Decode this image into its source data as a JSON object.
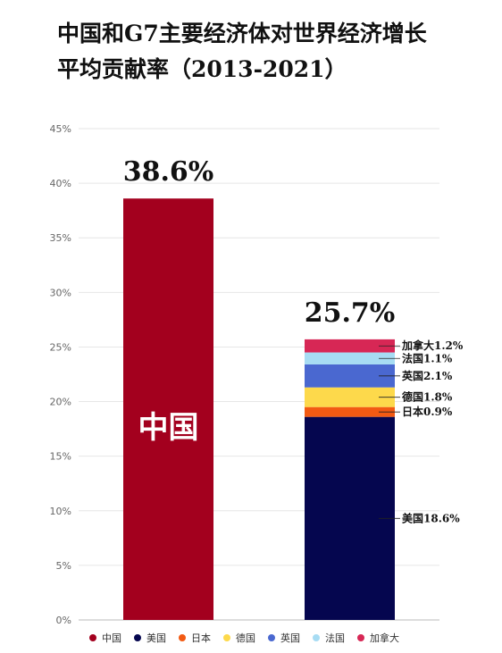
{
  "title_lines": [
    "中国和G7主要经济体对世界经济增长",
    "平均贡献率（2013-2021）"
  ],
  "chart_data": {
    "type": "bar",
    "title": "中国和G7主要经济体对世界经济增长平均贡献率（2013-2021）",
    "ylim": [
      0,
      45
    ],
    "yticks": [
      "0%",
      "5%",
      "10%",
      "15%",
      "20%",
      "25%",
      "30%",
      "35%",
      "40%",
      "45%"
    ],
    "grid": true,
    "legend_position": "bottom",
    "bars": [
      {
        "total_label": "38.6%",
        "inner_label": "中国",
        "segments": [
          {
            "name": "中国",
            "value": 38.6,
            "color": "#a3001e",
            "label": ""
          }
        ]
      },
      {
        "total_label": "25.7%",
        "inner_label": "",
        "segments": [
          {
            "name": "美国",
            "value": 18.6,
            "color": "#05064f",
            "label": "美国18.6%"
          },
          {
            "name": "日本",
            "value": 0.9,
            "color": "#f25a13",
            "label": "日本0.9%"
          },
          {
            "name": "德国",
            "value": 1.8,
            "color": "#fdd94b",
            "label": "德国1.8%"
          },
          {
            "name": "英国",
            "value": 2.1,
            "color": "#4a68d0",
            "label": "英国2.1%"
          },
          {
            "name": "法国",
            "value": 1.1,
            "color": "#a7dcf3",
            "label": "法国1.1%"
          },
          {
            "name": "加拿大",
            "value": 1.2,
            "color": "#d72755",
            "label": "加拿大1.2%"
          }
        ]
      }
    ],
    "legend": [
      {
        "name": "中国",
        "color": "#a3001e"
      },
      {
        "name": "美国",
        "color": "#05064f"
      },
      {
        "name": "日本",
        "color": "#f25a13"
      },
      {
        "name": "德国",
        "color": "#fdd94b"
      },
      {
        "name": "英国",
        "color": "#4a68d0"
      },
      {
        "name": "法国",
        "color": "#a7dcf3"
      },
      {
        "name": "加拿大",
        "color": "#d72755"
      }
    ]
  }
}
